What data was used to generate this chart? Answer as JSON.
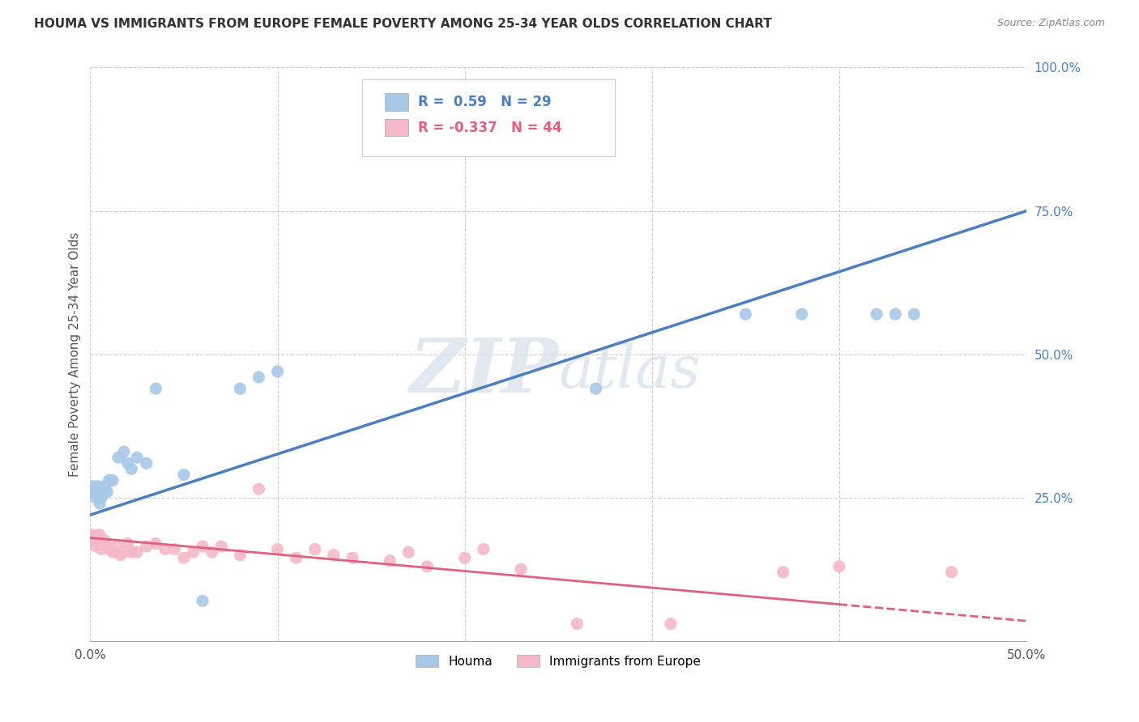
{
  "title": "HOUMA VS IMMIGRANTS FROM EUROPE FEMALE POVERTY AMONG 25-34 YEAR OLDS CORRELATION CHART",
  "source": "Source: ZipAtlas.com",
  "ylabel_label": "Female Poverty Among 25-34 Year Olds",
  "xlim": [
    0,
    0.5
  ],
  "ylim": [
    0,
    1.0
  ],
  "houma_color": "#a8c8e8",
  "europe_color": "#f4b8c8",
  "houma_line_color": "#4a7fc0",
  "europe_line_color": "#e06080",
  "R_houma": 0.59,
  "N_houma": 29,
  "R_europe": -0.337,
  "N_europe": 44,
  "watermark": "ZIPatlas",
  "background_color": "#ffffff",
  "grid_color": "#cccccc",
  "houma_x": [
    0.001,
    0.002,
    0.003,
    0.004,
    0.005,
    0.006,
    0.007,
    0.008,
    0.009,
    0.01,
    0.012,
    0.015,
    0.018,
    0.02,
    0.022,
    0.025,
    0.03,
    0.035,
    0.05,
    0.06,
    0.08,
    0.09,
    0.1,
    0.27,
    0.35,
    0.38,
    0.42,
    0.43,
    0.44
  ],
  "houma_y": [
    0.27,
    0.26,
    0.25,
    0.27,
    0.24,
    0.25,
    0.26,
    0.27,
    0.26,
    0.28,
    0.28,
    0.32,
    0.33,
    0.31,
    0.3,
    0.32,
    0.31,
    0.44,
    0.29,
    0.07,
    0.44,
    0.46,
    0.47,
    0.44,
    0.57,
    0.57,
    0.57,
    0.57,
    0.57
  ],
  "europe_x": [
    0.001,
    0.002,
    0.003,
    0.004,
    0.005,
    0.006,
    0.007,
    0.008,
    0.009,
    0.01,
    0.012,
    0.014,
    0.016,
    0.018,
    0.02,
    0.022,
    0.025,
    0.03,
    0.035,
    0.04,
    0.045,
    0.05,
    0.055,
    0.06,
    0.065,
    0.07,
    0.08,
    0.09,
    0.1,
    0.11,
    0.12,
    0.13,
    0.14,
    0.16,
    0.17,
    0.18,
    0.2,
    0.21,
    0.23,
    0.26,
    0.31,
    0.37,
    0.4,
    0.46
  ],
  "europe_y": [
    0.185,
    0.175,
    0.165,
    0.185,
    0.185,
    0.16,
    0.17,
    0.175,
    0.165,
    0.16,
    0.155,
    0.165,
    0.15,
    0.155,
    0.17,
    0.155,
    0.155,
    0.165,
    0.17,
    0.16,
    0.16,
    0.145,
    0.155,
    0.165,
    0.155,
    0.165,
    0.15,
    0.265,
    0.16,
    0.145,
    0.16,
    0.15,
    0.145,
    0.14,
    0.155,
    0.13,
    0.145,
    0.16,
    0.125,
    0.03,
    0.03,
    0.12,
    0.13,
    0.12
  ]
}
